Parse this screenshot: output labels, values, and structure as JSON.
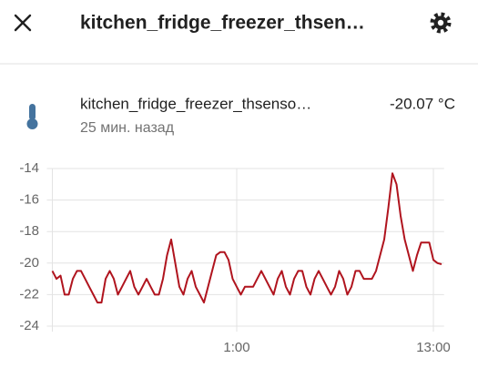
{
  "header": {
    "title": "kitchen_fridge_freezer_thsen…"
  },
  "entity": {
    "name": "kitchen_fridge_freezer_thsenso…",
    "state": "-20.07 °C",
    "last_changed": "25 мин. назад"
  },
  "chart_data": {
    "type": "line",
    "color": "#b0141e",
    "grid": true,
    "x": [
      13.75,
      14,
      14.25,
      14.5,
      14.75,
      15,
      15.25,
      15.5,
      15.75,
      16,
      16.25,
      16.5,
      16.75,
      17,
      17.25,
      17.5,
      17.75,
      18,
      18.25,
      18.5,
      18.75,
      19,
      19.25,
      19.5,
      19.75,
      20,
      20.25,
      20.5,
      20.75,
      21,
      21.25,
      21.5,
      21.75,
      22,
      22.25,
      22.5,
      22.75,
      23,
      23.25,
      23.5,
      23.75,
      24,
      24.25,
      24.5,
      24.75,
      25,
      25.25,
      25.5,
      25.75,
      26,
      26.25,
      26.5,
      26.75,
      27,
      27.25,
      27.5,
      27.75,
      28,
      28.25,
      28.5,
      28.75,
      29,
      29.25,
      29.5,
      29.75,
      30,
      30.25,
      30.5,
      30.75,
      31,
      31.25,
      31.5,
      31.75,
      32,
      32.25,
      32.5,
      32.75,
      33,
      33.25,
      33.5,
      33.75,
      34,
      34.25,
      34.5,
      34.75,
      35,
      35.25,
      35.5,
      35.75,
      36,
      36.25,
      36.5,
      36.75,
      37,
      37.25,
      37.5
    ],
    "values": [
      -20.5,
      -21,
      -20.8,
      -22,
      -22,
      -21,
      -20.5,
      -20.5,
      -21,
      -21.5,
      -22,
      -22.5,
      -22.5,
      -21,
      -20.5,
      -21,
      -22,
      -21.5,
      -21,
      -20.5,
      -21.5,
      -22,
      -21.5,
      -21,
      -21.5,
      -22,
      -22,
      -21,
      -19.5,
      -18.5,
      -20,
      -21.5,
      -22,
      -21,
      -20.5,
      -21.5,
      -22,
      -22.5,
      -21.5,
      -20.5,
      -19.5,
      -19.3,
      -19.3,
      -19.8,
      -21,
      -21.5,
      -22,
      -21.5,
      -21.5,
      -21.5,
      -21,
      -20.5,
      -21,
      -21.5,
      -22,
      -21,
      -20.5,
      -21.5,
      -22,
      -21,
      -20.5,
      -20.5,
      -21.5,
      -22,
      -21,
      -20.5,
      -21,
      -21.5,
      -22,
      -21.5,
      -20.5,
      -21,
      -22,
      -21.5,
      -20.5,
      -20.5,
      -21,
      -21,
      -21,
      -20.5,
      -19.5,
      -18.5,
      -16.5,
      -14.3,
      -15,
      -17,
      -18.5,
      -19.5,
      -20.5,
      -19.5,
      -18.7,
      -18.7,
      -18.7,
      -19.8,
      -20,
      -20.07
    ],
    "xlim": [
      13.75,
      37.65
    ],
    "xticks": [
      {
        "value": 25,
        "label": "1:00"
      },
      {
        "value": 37,
        "label": "13:00"
      }
    ],
    "ylim": [
      -24,
      -14
    ],
    "yticks": [
      -24,
      -22,
      -20,
      -18,
      -16,
      -14
    ]
  }
}
